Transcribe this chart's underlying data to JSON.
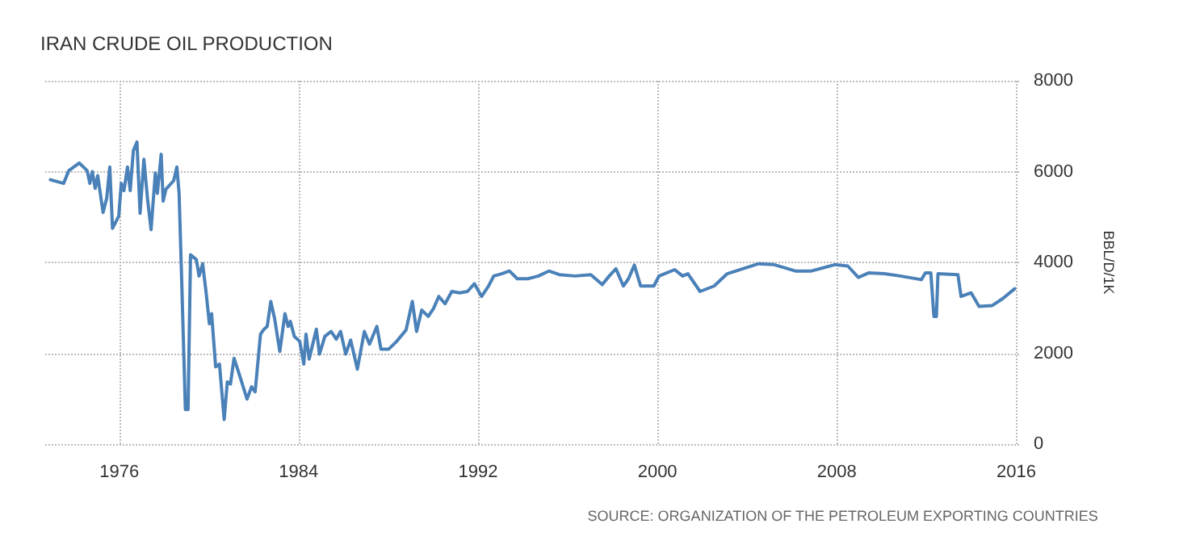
{
  "chart_data": {
    "type": "line",
    "title": "IRAN CRUDE OIL PRODUCTION",
    "ylabel": "BBL/D/1K",
    "annotations": [
      "SOURCE: ORGANIZATION OF THE PETROLEUM EXPORTING COUNTRIES"
    ],
    "xlim": [
      1972.7,
      2016.2
    ],
    "xticks": [
      1976,
      1984,
      1992,
      2000,
      2008,
      2016
    ],
    "ylim": [
      0,
      8000
    ],
    "yticks": [
      0,
      2000,
      4000,
      6000,
      8000
    ],
    "grid": true,
    "marker": "none",
    "line_style": "solid",
    "x": [
      1972.93,
      1973.52,
      1973.75,
      1974.22,
      1974.57,
      1974.69,
      1974.8,
      1974.93,
      1975.04,
      1975.28,
      1975.44,
      1975.58,
      1975.7,
      1975.98,
      1976.09,
      1976.21,
      1976.37,
      1976.49,
      1976.63,
      1976.79,
      1976.93,
      1977.1,
      1977.26,
      1977.42,
      1977.61,
      1977.7,
      1977.87,
      1977.96,
      1978.08,
      1978.43,
      1978.57,
      1978.67,
      1978.79,
      1978.95,
      1979.07,
      1979.18,
      1979.44,
      1979.56,
      1979.72,
      1979.88,
      1980.02,
      1980.12,
      1980.3,
      1980.47,
      1980.68,
      1980.82,
      1980.96,
      1981.12,
      1981.35,
      1981.7,
      1981.9,
      1982.06,
      1982.3,
      1982.46,
      1982.6,
      1982.76,
      1982.93,
      1983.16,
      1983.39,
      1983.53,
      1983.63,
      1983.81,
      1984.05,
      1984.23,
      1984.33,
      1984.47,
      1984.79,
      1984.93,
      1985.17,
      1985.45,
      1985.68,
      1985.87,
      1986.1,
      1986.32,
      1986.62,
      1986.93,
      1987.16,
      1987.49,
      1987.67,
      1988.02,
      1988.37,
      1988.79,
      1989.07,
      1989.26,
      1989.49,
      1989.78,
      1990.01,
      1990.25,
      1990.53,
      1990.83,
      1991.18,
      1991.53,
      1991.84,
      1992.16,
      1992.47,
      1992.7,
      1993.05,
      1993.4,
      1993.75,
      1994.22,
      1994.69,
      1995.16,
      1995.63,
      1996.33,
      1997.03,
      1997.54,
      1997.85,
      1998.15,
      1998.48,
      1998.71,
      1998.97,
      1999.25,
      1999.84,
      2000.07,
      2000.77,
      2001.12,
      2001.36,
      2001.9,
      2002.53,
      2003.11,
      2003.81,
      2004.51,
      2005.21,
      2006.15,
      2006.86,
      2007.91,
      2008.49,
      2008.96,
      2009.43,
      2010.13,
      2010.83,
      2011.77,
      2011.95,
      2012.19,
      2012.33,
      2012.44,
      2012.51,
      2013.4,
      2013.54,
      2013.99,
      2014.34,
      2014.93,
      2015.39,
      2015.93
    ],
    "series": [
      {
        "color": "#4a81b8",
        "values": [
          5820,
          5740,
          6020,
          6190,
          6020,
          5740,
          6000,
          5630,
          5910,
          5100,
          5410,
          6100,
          4750,
          5020,
          5740,
          5580,
          6100,
          5580,
          6460,
          6650,
          5080,
          6270,
          5410,
          4720,
          5970,
          5520,
          6380,
          5350,
          5610,
          5800,
          6100,
          5520,
          3530,
          760,
          760,
          4170,
          4060,
          3700,
          3970,
          3310,
          2650,
          2870,
          1700,
          1760,
          540,
          1370,
          1320,
          1890,
          1540,
          990,
          1260,
          1150,
          2420,
          2530,
          2590,
          3140,
          2760,
          2040,
          2870,
          2590,
          2700,
          2370,
          2260,
          1760,
          2420,
          1870,
          2530,
          1980,
          2370,
          2480,
          2310,
          2480,
          1980,
          2290,
          1650,
          2480,
          2200,
          2590,
          2090,
          2090,
          2260,
          2510,
          3140,
          2480,
          2950,
          2810,
          2980,
          3250,
          3090,
          3360,
          3330,
          3360,
          3530,
          3250,
          3480,
          3700,
          3750,
          3810,
          3640,
          3640,
          3700,
          3810,
          3730,
          3700,
          3730,
          3510,
          3700,
          3860,
          3480,
          3640,
          3940,
          3480,
          3480,
          3700,
          3840,
          3700,
          3750,
          3360,
          3480,
          3750,
          3860,
          3970,
          3950,
          3810,
          3810,
          3950,
          3920,
          3670,
          3770,
          3750,
          3700,
          3620,
          3770,
          3770,
          2810,
          2810,
          3750,
          3730,
          3250,
          3330,
          3030,
          3050,
          3200,
          3420
        ]
      }
    ]
  }
}
